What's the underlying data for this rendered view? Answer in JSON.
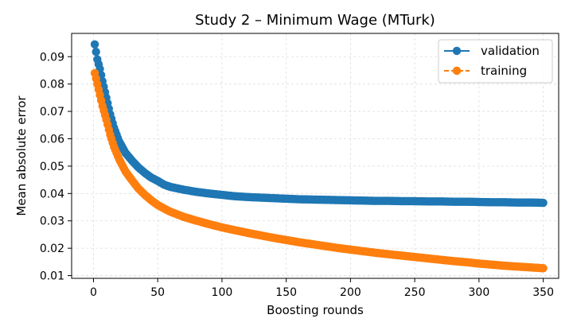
{
  "chart_data": {
    "type": "line",
    "title": "Study 2 – Minimum Wage (MTurk)",
    "xlabel": "Boosting rounds",
    "ylabel": "Mean absolute error",
    "xlim": [
      -17,
      362
    ],
    "ylim": [
      0.009,
      0.0985
    ],
    "xticks": [
      0,
      50,
      100,
      150,
      200,
      250,
      300,
      350
    ],
    "yticks": [
      0.01,
      0.02,
      0.03,
      0.04,
      0.05,
      0.06,
      0.07,
      0.08,
      0.09
    ],
    "grid": true,
    "legend_position": "top-right",
    "series": [
      {
        "name": "validation",
        "color": "#1f77b4",
        "line_style": "solid",
        "x": [
          1,
          3,
          5,
          7,
          10,
          13,
          16,
          20,
          25,
          30,
          35,
          40,
          45,
          50,
          55,
          60,
          70,
          80,
          90,
          100,
          110,
          120,
          130,
          140,
          150,
          160,
          170,
          180,
          190,
          200,
          210,
          220,
          230,
          240,
          250,
          260,
          270,
          280,
          290,
          300,
          310,
          320,
          330,
          340,
          350
        ],
        "y": [
          0.0945,
          0.089,
          0.0855,
          0.081,
          0.075,
          0.069,
          0.064,
          0.059,
          0.0548,
          0.052,
          0.0495,
          0.0475,
          0.0458,
          0.0446,
          0.0432,
          0.0424,
          0.0414,
          0.0406,
          0.04,
          0.0395,
          0.039,
          0.0387,
          0.0385,
          0.0383,
          0.0381,
          0.0379,
          0.0378,
          0.0377,
          0.0376,
          0.0375,
          0.0374,
          0.0373,
          0.0373,
          0.0372,
          0.0372,
          0.0371,
          0.0371,
          0.037,
          0.037,
          0.0369,
          0.0368,
          0.0368,
          0.0367,
          0.0367,
          0.0366
        ]
      },
      {
        "name": "training",
        "color": "#ff7f0e",
        "line_style": "dashed",
        "x": [
          1,
          3,
          5,
          7,
          10,
          13,
          16,
          20,
          25,
          30,
          35,
          40,
          45,
          50,
          55,
          60,
          70,
          80,
          90,
          100,
          110,
          120,
          130,
          140,
          150,
          160,
          170,
          180,
          190,
          200,
          210,
          220,
          230,
          240,
          250,
          260,
          270,
          280,
          290,
          300,
          310,
          320,
          330,
          340,
          350
        ],
        "y": [
          0.084,
          0.08,
          0.076,
          0.072,
          0.067,
          0.0615,
          0.057,
          0.0525,
          0.048,
          0.0448,
          0.0418,
          0.0395,
          0.0375,
          0.0358,
          0.0345,
          0.0333,
          0.0315,
          0.0301,
          0.0288,
          0.0276,
          0.0266,
          0.0256,
          0.0247,
          0.0238,
          0.023,
          0.0222,
          0.0215,
          0.0208,
          0.0201,
          0.0195,
          0.0189,
          0.0183,
          0.0178,
          0.0173,
          0.0168,
          0.0163,
          0.0158,
          0.0153,
          0.0149,
          0.0144,
          0.014,
          0.0136,
          0.0133,
          0.013,
          0.0127
        ]
      }
    ]
  }
}
